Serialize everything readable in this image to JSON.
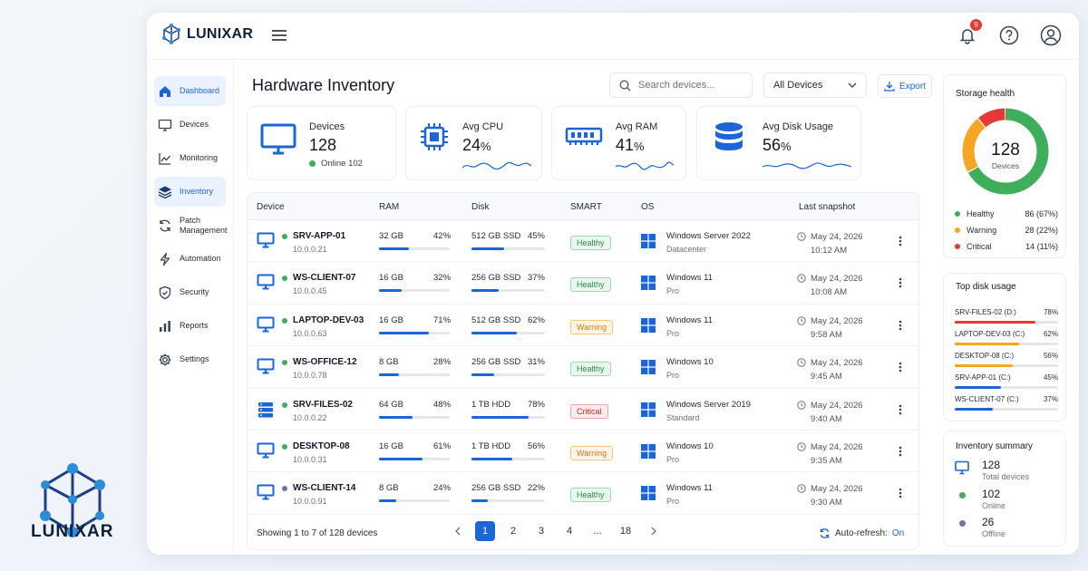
{
  "brand": {
    "name": "LUNIXAR"
  },
  "header": {
    "notifications_count": "9",
    "icons": [
      "bell-icon",
      "help-icon",
      "user-icon",
      "menu-icon"
    ]
  },
  "sidebar": {
    "items": [
      {
        "label": "Dashboard",
        "icon": "home-icon",
        "active": true
      },
      {
        "label": "Devices",
        "icon": "monitor-icon"
      },
      {
        "label": "Monitoring",
        "icon": "chart-line-icon"
      },
      {
        "label": "Inventory",
        "icon": "layers-icon"
      },
      {
        "label": "Patch Management",
        "icon": "refresh-icon"
      },
      {
        "label": "Automation",
        "icon": "bolt-icon"
      },
      {
        "label": "Security",
        "icon": "shield-icon"
      },
      {
        "label": "Reports",
        "icon": "bar-chart-icon"
      },
      {
        "label": "Settings",
        "icon": "gear-icon"
      }
    ]
  },
  "page": {
    "title": "Hardware Inventory",
    "search_placeholder": "Search devices...",
    "filter_value": "All Devices",
    "export_label": "Export"
  },
  "stats": {
    "devices": {
      "label": "Devices",
      "value": "128",
      "online": "Online 102"
    },
    "cpu": {
      "label": "Avg CPU",
      "value": "24",
      "unit": "%"
    },
    "ram": {
      "label": "Avg RAM",
      "value": "41",
      "unit": "%"
    },
    "disk": {
      "label": "Avg Disk Usage",
      "value": "56",
      "unit": "%"
    }
  },
  "table": {
    "headers": [
      "Device",
      "RAM",
      "Disk",
      "SMART",
      "OS",
      "Last snapshot"
    ],
    "rows": [
      {
        "name": "SRV-APP-01",
        "ip": "10.0.0.21",
        "type": "server-monitor",
        "status": "online",
        "ram": "32 GB",
        "ram_pct": "42%",
        "ram_v": 42,
        "disk": "512 GB SSD",
        "disk_pct": "45%",
        "disk_v": 45,
        "smart": "Healthy",
        "os": "Windows Server 2022",
        "edition": "Datacenter",
        "date": "May 24, 2026",
        "time": "10:12 AM"
      },
      {
        "name": "WS-CLIENT-07",
        "ip": "10.0.0.45",
        "type": "monitor",
        "status": "online",
        "ram": "16 GB",
        "ram_pct": "32%",
        "ram_v": 32,
        "disk": "256 GB SSD",
        "disk_pct": "37%",
        "disk_v": 37,
        "smart": "Healthy",
        "os": "Windows 11",
        "edition": "Pro",
        "date": "May 24, 2026",
        "time": "10:08 AM"
      },
      {
        "name": "LAPTOP-DEV-03",
        "ip": "10.0.0.63",
        "type": "monitor",
        "status": "online",
        "ram": "16 GB",
        "ram_pct": "71%",
        "ram_v": 71,
        "disk": "512 GB SSD",
        "disk_pct": "62%",
        "disk_v": 62,
        "smart": "Warning",
        "os": "Windows 11",
        "edition": "Pro",
        "date": "May 24, 2026",
        "time": "9:58 AM"
      },
      {
        "name": "WS-OFFICE-12",
        "ip": "10.0.0.78",
        "type": "monitor",
        "status": "online",
        "ram": "8 GB",
        "ram_pct": "28%",
        "ram_v": 28,
        "disk": "256 GB SSD",
        "disk_pct": "31%",
        "disk_v": 31,
        "smart": "Healthy",
        "os": "Windows 10",
        "edition": "Pro",
        "date": "May 24, 2026",
        "time": "9:45 AM"
      },
      {
        "name": "SRV-FILES-02",
        "ip": "10.0.0.22",
        "type": "server",
        "status": "online",
        "ram": "64 GB",
        "ram_pct": "48%",
        "ram_v": 48,
        "disk": "1 TB HDD",
        "disk_pct": "78%",
        "disk_v": 78,
        "smart": "Critical",
        "os": "Windows Server 2019",
        "edition": "Standard",
        "date": "May 24, 2026",
        "time": "9:40 AM"
      },
      {
        "name": "DESKTOP-08",
        "ip": "10.0.0.31",
        "type": "monitor",
        "status": "online",
        "ram": "16 GB",
        "ram_pct": "61%",
        "ram_v": 61,
        "disk": "1 TB HDD",
        "disk_pct": "56%",
        "disk_v": 56,
        "smart": "Warning",
        "os": "Windows 10",
        "edition": "Pro",
        "date": "May 24, 2026",
        "time": "9:35 AM"
      },
      {
        "name": "WS-CLIENT-14",
        "ip": "10.0.0.91",
        "type": "monitor",
        "status": "offline",
        "ram": "8 GB",
        "ram_pct": "24%",
        "ram_v": 24,
        "disk": "256 GB SSD",
        "disk_pct": "22%",
        "disk_v": 22,
        "smart": "Healthy",
        "os": "Windows 11",
        "edition": "Pro",
        "date": "May 24, 2026",
        "time": "9:30 AM"
      }
    ],
    "showing": "Showing 1 to 7 of 128 devices",
    "pages": [
      "1",
      "2",
      "3",
      "4",
      "...",
      "18"
    ],
    "current_page": "1",
    "auto_refresh_label": "Auto-refresh:",
    "auto_refresh_value": "On"
  },
  "storage": {
    "title": "Storage health",
    "total": "128",
    "total_label": "Devices",
    "segments": [
      {
        "label": "Healthy",
        "value": "86 (67%)",
        "fraction": 0.67,
        "color": "#3fae5a"
      },
      {
        "label": "Warning",
        "value": "28 (22%)",
        "fraction": 0.22,
        "color": "#f5a623"
      },
      {
        "label": "Critical",
        "value": "14 (11%)",
        "fraction": 0.11,
        "color": "#e53935"
      }
    ]
  },
  "top_disk": {
    "title": "Top disk usage",
    "items": [
      {
        "label": "SRV-FILES-02 (D:)",
        "pct": "78%",
        "v": 78,
        "color": "#e53935"
      },
      {
        "label": "LAPTOP-DEV-03 (C:)",
        "pct": "62%",
        "v": 62,
        "color": "#f5a623"
      },
      {
        "label": "DESKTOP-08 (C:)",
        "pct": "56%",
        "v": 56,
        "color": "#f5a623"
      },
      {
        "label": "SRV-APP-01 (C:)",
        "pct": "45%",
        "v": 45,
        "color": "#1a66d9"
      },
      {
        "label": "WS-CLIENT-07 (C:)",
        "pct": "37%",
        "v": 37,
        "color": "#1a66d9"
      }
    ]
  },
  "summary": {
    "title": "Inventory summary",
    "items": [
      {
        "n": "128",
        "s": "Total devices",
        "icon": "monitor-icon"
      },
      {
        "n": "102",
        "s": "Online",
        "color": "#3fae5a"
      },
      {
        "n": "26",
        "s": "Offline",
        "color": "#6b7a90"
      }
    ]
  },
  "colors": {
    "accent": "#1a66d9",
    "healthy": "#3fae5a",
    "warning": "#f5a623",
    "critical": "#e53935"
  }
}
